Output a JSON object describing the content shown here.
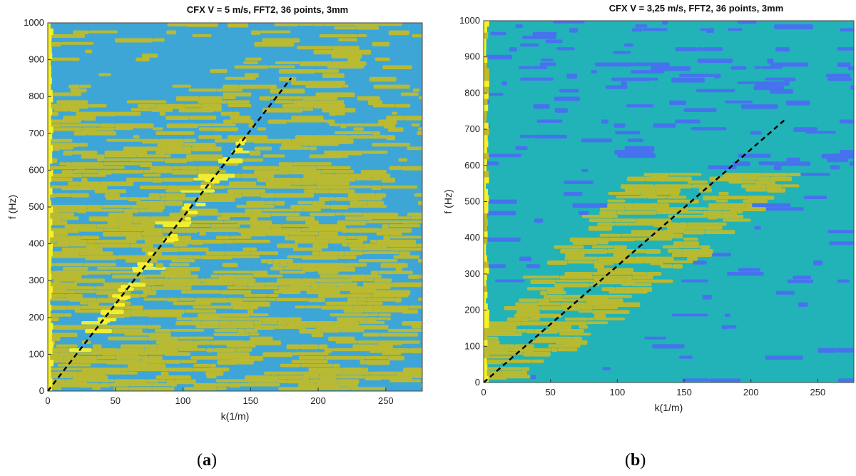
{
  "chart_data": [
    {
      "type": "heatmap",
      "title": "CFX V = 5 m/s, FFT2, 36 points, 3mm",
      "xlabel": "k(1/m)",
      "ylabel": "f (Hz)",
      "xlim": [
        0,
        277
      ],
      "ylim": [
        0,
        1000
      ],
      "xticks": [
        0,
        50,
        100,
        150,
        200,
        250
      ],
      "yticks": [
        0,
        100,
        200,
        300,
        400,
        500,
        600,
        700,
        800,
        900,
        1000
      ],
      "colors": {
        "low": "#3ea6d6",
        "mid": "#bfbb2b",
        "high": "#f7f02a",
        "background": "#3ea6d6"
      },
      "dispersion_line": {
        "from": [
          0,
          0
        ],
        "to": [
          180,
          850
        ],
        "style": "dashed",
        "color": "#000000"
      },
      "subfigure_label": "a"
    },
    {
      "type": "heatmap",
      "title": "CFX V = 3,25 m/s, FFT2, 36 points, 3mm",
      "xlabel": "k(1/m)",
      "ylabel": "f (Hz)",
      "xlim": [
        0,
        277
      ],
      "ylim": [
        0,
        1000
      ],
      "xticks": [
        0,
        50,
        100,
        150,
        200,
        250
      ],
      "yticks": [
        0,
        100,
        200,
        300,
        400,
        500,
        600,
        700,
        800,
        900,
        1000
      ],
      "colors": {
        "low": "#4a6ff0",
        "mid": "#bfbb2b",
        "high": "#f7f02a",
        "background": "#21b3b8"
      },
      "dispersion_line": {
        "from": [
          0,
          0
        ],
        "to": [
          225,
          725
        ],
        "style": "dashed",
        "color": "#000000"
      },
      "subfigure_label": "b"
    }
  ]
}
